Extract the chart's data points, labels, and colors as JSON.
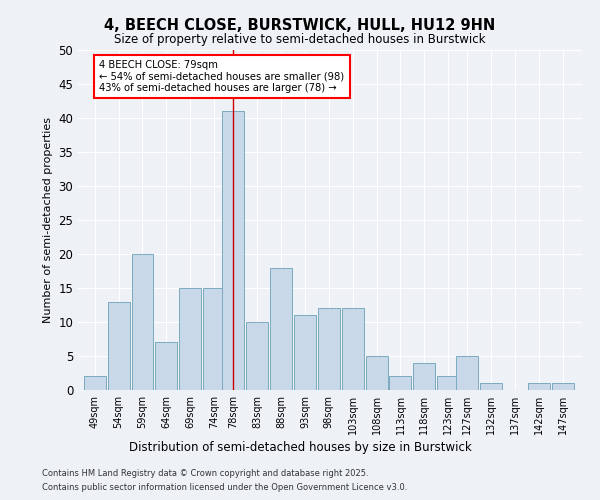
{
  "title": "4, BEECH CLOSE, BURSTWICK, HULL, HU12 9HN",
  "subtitle": "Size of property relative to semi-detached houses in Burstwick",
  "xlabel": "Distribution of semi-detached houses by size in Burstwick",
  "ylabel": "Number of semi-detached properties",
  "footer_line1": "Contains HM Land Registry data © Crown copyright and database right 2025.",
  "footer_line2": "Contains public sector information licensed under the Open Government Licence v3.0.",
  "annotation_title": "4 BEECH CLOSE: 79sqm",
  "annotation_line1": "← 54% of semi-detached houses are smaller (98)",
  "annotation_line2": "43% of semi-detached houses are larger (78) →",
  "bar_labels": [
    "49sqm",
    "54sqm",
    "59sqm",
    "64sqm",
    "69sqm",
    "74sqm",
    "78sqm",
    "83sqm",
    "88sqm",
    "93sqm",
    "98sqm",
    "103sqm",
    "108sqm",
    "113sqm",
    "118sqm",
    "123sqm",
    "127sqm",
    "132sqm",
    "137sqm",
    "142sqm",
    "147sqm"
  ],
  "bar_values": [
    2,
    13,
    20,
    7,
    15,
    15,
    41,
    10,
    18,
    11,
    12,
    12,
    5,
    2,
    4,
    2,
    5,
    1,
    0,
    1,
    1
  ],
  "bar_centers": [
    49,
    54,
    59,
    64,
    69,
    74,
    78,
    83,
    88,
    93,
    98,
    103,
    108,
    113,
    118,
    123,
    127,
    132,
    137,
    142,
    147
  ],
  "bar_color": "#c8d8e8",
  "bar_edge_color": "#7baabf",
  "marker_color": "#cc0000",
  "background_color": "#eef2f7",
  "ylim": [
    0,
    50
  ],
  "yticks": [
    0,
    5,
    10,
    15,
    20,
    25,
    30,
    35,
    40,
    45,
    50
  ]
}
